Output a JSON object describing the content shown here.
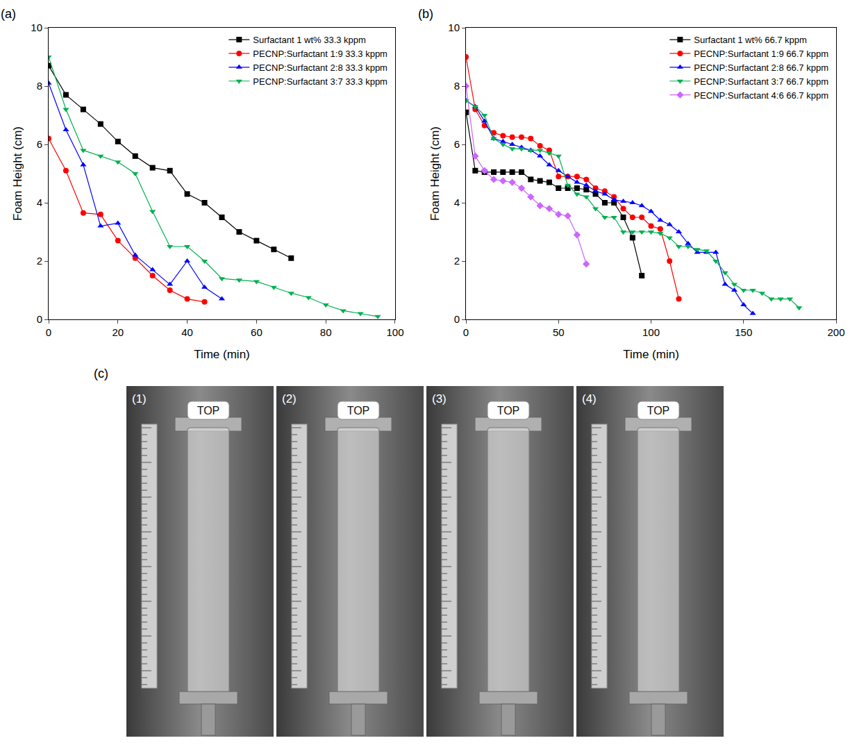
{
  "chart_data": [
    {
      "type": "line",
      "panel": "(a)",
      "x_label": "Time (min)",
      "y_label": "Foam Height (cm)",
      "xlim": [
        0,
        100
      ],
      "xticks": [
        0,
        20,
        40,
        60,
        80,
        100
      ],
      "ylim": [
        0,
        10
      ],
      "yticks": [
        0,
        2,
        4,
        6,
        8,
        10
      ],
      "grid": false,
      "legend": "upper right",
      "series": [
        {
          "name": "Surfactant 1 wt% 33.3 kppm",
          "color": "#000000",
          "marker": "square",
          "line_style": "solid",
          "x": [
            0,
            5,
            10,
            15,
            20,
            25,
            30,
            35,
            40,
            45,
            50,
            55,
            60,
            65,
            70
          ],
          "values": [
            8.7,
            7.7,
            7.2,
            6.7,
            6.1,
            5.6,
            5.2,
            5.1,
            4.3,
            4.0,
            3.5,
            3.0,
            2.7,
            2.4,
            2.1
          ]
        },
        {
          "name": "PECNP:Surfactant 1:9 33.3 kppm",
          "color": "#ff0000",
          "marker": "circle",
          "line_style": "solid",
          "x": [
            0,
            5,
            10,
            15,
            20,
            25,
            30,
            35,
            40,
            45
          ],
          "values": [
            6.2,
            5.1,
            3.65,
            3.6,
            2.7,
            2.1,
            1.5,
            1.0,
            0.7,
            0.6
          ]
        },
        {
          "name": "PECNP:Surfactant 2:8 33.3 kppm",
          "color": "#0000ff",
          "marker": "triangle-up",
          "line_style": "solid",
          "x": [
            0,
            5,
            10,
            15,
            20,
            25,
            30,
            35,
            40,
            45,
            50
          ],
          "values": [
            8.1,
            6.5,
            5.3,
            3.2,
            3.3,
            2.2,
            1.7,
            1.2,
            2.0,
            1.1,
            0.7
          ]
        },
        {
          "name": "PECNP:Surfactant 3:7 33.3 kppm",
          "color": "#00b050",
          "marker": "triangle-down",
          "line_style": "solid",
          "x": [
            0,
            5,
            10,
            15,
            20,
            25,
            30,
            35,
            40,
            45,
            50,
            55,
            60,
            65,
            70,
            75,
            80,
            85,
            90,
            95
          ],
          "values": [
            9.0,
            7.2,
            5.8,
            5.6,
            5.4,
            5.0,
            3.7,
            2.5,
            2.5,
            2.0,
            1.4,
            1.35,
            1.3,
            1.1,
            0.9,
            0.75,
            0.5,
            0.3,
            0.2,
            0.1
          ]
        }
      ]
    },
    {
      "type": "line",
      "panel": "(b)",
      "x_label": "Time (min)",
      "y_label": "Foam Height (cm)",
      "xlim": [
        0,
        200
      ],
      "xticks": [
        0,
        50,
        100,
        150,
        200
      ],
      "ylim": [
        0,
        10
      ],
      "yticks": [
        0,
        2,
        4,
        6,
        8,
        10
      ],
      "grid": false,
      "legend": "upper right",
      "series": [
        {
          "name": "Surfactant 1 wt% 66.7 kppm",
          "color": "#000000",
          "marker": "square",
          "line_style": "solid",
          "x": [
            0,
            5,
            10,
            15,
            20,
            25,
            30,
            35,
            40,
            45,
            50,
            55,
            60,
            65,
            70,
            75,
            80,
            85,
            90,
            95
          ],
          "values": [
            7.1,
            5.1,
            5.05,
            5.05,
            5.05,
            5.05,
            5.05,
            4.8,
            4.75,
            4.7,
            4.5,
            4.5,
            4.5,
            4.45,
            4.3,
            4.0,
            4.0,
            3.5,
            2.8,
            1.5
          ]
        },
        {
          "name": "PECNP:Surfactant 1:9 66.7 kppm",
          "color": "#ff0000",
          "marker": "circle",
          "line_style": "solid",
          "x": [
            0,
            5,
            10,
            15,
            20,
            25,
            30,
            35,
            40,
            45,
            50,
            55,
            60,
            65,
            70,
            75,
            80,
            85,
            90,
            95,
            100,
            105,
            110,
            115
          ],
          "values": [
            9.0,
            7.2,
            6.65,
            6.4,
            6.3,
            6.25,
            6.25,
            6.2,
            5.95,
            5.8,
            4.9,
            4.9,
            4.9,
            4.8,
            4.5,
            4.4,
            4.2,
            3.8,
            3.5,
            3.5,
            3.2,
            3.1,
            2.0,
            0.7
          ]
        },
        {
          "name": "PECNP:Surfactant 2:8 66.7 kppm",
          "color": "#0000ff",
          "marker": "triangle-up",
          "line_style": "solid",
          "x": [
            0,
            5,
            10,
            15,
            20,
            25,
            30,
            35,
            40,
            45,
            50,
            55,
            60,
            65,
            70,
            75,
            80,
            85,
            90,
            95,
            100,
            105,
            110,
            115,
            120,
            125,
            130,
            135,
            140,
            145,
            150,
            155
          ],
          "values": [
            7.5,
            7.3,
            6.8,
            6.2,
            6.1,
            6.0,
            5.9,
            5.8,
            5.6,
            5.3,
            5.1,
            4.9,
            4.7,
            4.6,
            4.4,
            4.3,
            4.1,
            4.05,
            4.0,
            3.9,
            3.7,
            3.4,
            3.25,
            3.0,
            2.6,
            2.3,
            2.3,
            2.3,
            1.2,
            1.0,
            0.5,
            0.2
          ]
        },
        {
          "name": "PECNP:Surfactant 3:7 66.7 kppm",
          "color": "#00b050",
          "marker": "triangle-down",
          "line_style": "solid",
          "x": [
            0,
            5,
            10,
            15,
            20,
            25,
            30,
            35,
            40,
            45,
            50,
            55,
            60,
            65,
            70,
            75,
            80,
            85,
            90,
            95,
            100,
            105,
            110,
            115,
            120,
            125,
            130,
            135,
            140,
            145,
            150,
            155,
            160,
            165,
            170,
            175,
            180
          ],
          "values": [
            7.5,
            7.3,
            7.0,
            6.2,
            6.0,
            5.85,
            5.85,
            5.8,
            5.8,
            5.7,
            5.6,
            4.6,
            4.3,
            4.2,
            3.8,
            3.5,
            3.5,
            3.0,
            3.0,
            3.0,
            3.0,
            2.95,
            2.8,
            2.5,
            2.5,
            2.4,
            2.35,
            2.0,
            1.6,
            1.2,
            1.0,
            1.0,
            0.9,
            0.7,
            0.7,
            0.7,
            0.4
          ]
        },
        {
          "name": "PECNP:Surfactant 4:6 66.7 kppm",
          "color": "#cc66ff",
          "marker": "diamond",
          "line_style": "solid",
          "x": [
            0,
            5,
            10,
            15,
            20,
            25,
            30,
            35,
            40,
            45,
            50,
            55,
            60,
            65
          ],
          "values": [
            8.0,
            5.6,
            5.1,
            4.8,
            4.75,
            4.7,
            4.5,
            4.2,
            3.9,
            3.8,
            3.6,
            3.55,
            2.9,
            1.9
          ]
        }
      ]
    }
  ],
  "panel_c": {
    "panel": "(c)",
    "photos": [
      {
        "label": "(1)",
        "tag": "TOP"
      },
      {
        "label": "(2)",
        "tag": "TOP"
      },
      {
        "label": "(3)",
        "tag": "TOP"
      },
      {
        "label": "(4)",
        "tag": "TOP"
      }
    ]
  }
}
